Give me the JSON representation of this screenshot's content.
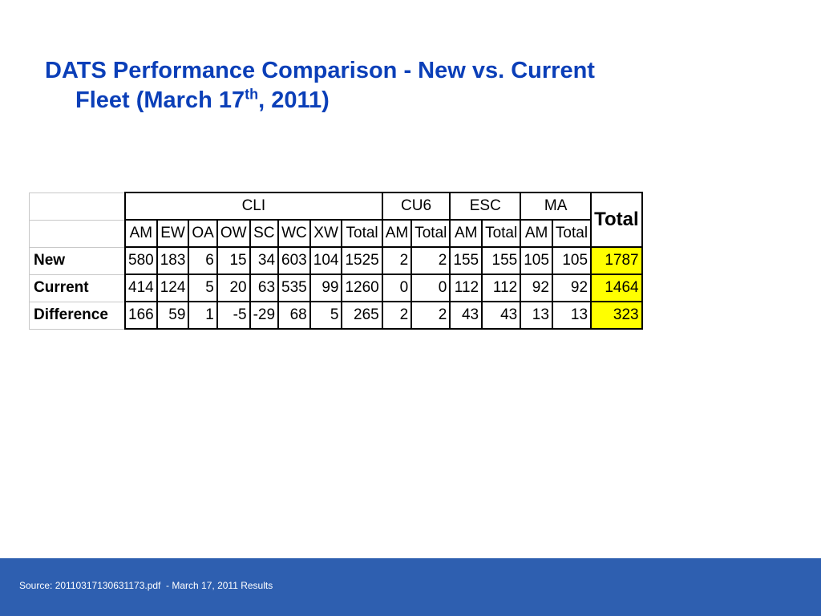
{
  "title": {
    "line1": "DATS Performance Comparison - New vs. Current",
    "line2_before": "Fleet (March 17",
    "line2_sup": "th",
    "line2_after": ", 2011)"
  },
  "table": {
    "groups": [
      "CLI",
      "CU6",
      "ESC",
      "MA"
    ],
    "total_header": "Total",
    "subheaders": [
      "AM",
      "EW",
      "OA",
      "OW",
      "SC",
      "WC",
      "XW",
      "Total",
      "AM",
      "Total",
      "AM",
      "Total",
      "AM",
      "Total"
    ],
    "rows": [
      {
        "label": "New",
        "values": [
          "580",
          "183",
          "6",
          "15",
          "34",
          "603",
          "104",
          "1525",
          "2",
          "2",
          "155",
          "155",
          "105",
          "105",
          "1787"
        ]
      },
      {
        "label": "Current",
        "values": [
          "414",
          "124",
          "5",
          "20",
          "63",
          "535",
          "99",
          "1260",
          "0",
          "0",
          "112",
          "112",
          "92",
          "92",
          "1464"
        ]
      },
      {
        "label": "Difference",
        "values": [
          "166",
          "59",
          "1",
          "-5",
          "-29",
          "68",
          "5",
          "265",
          "2",
          "2",
          "43",
          "43",
          "13",
          "13",
          "323"
        ]
      }
    ]
  },
  "footer": {
    "source": "Source: 20110317130631173.pdf  - March 17, 2011 Results"
  },
  "colors": {
    "title": "#0b3fb8",
    "footer_bg": "#2e5fb0",
    "highlight": "#ffff00"
  }
}
